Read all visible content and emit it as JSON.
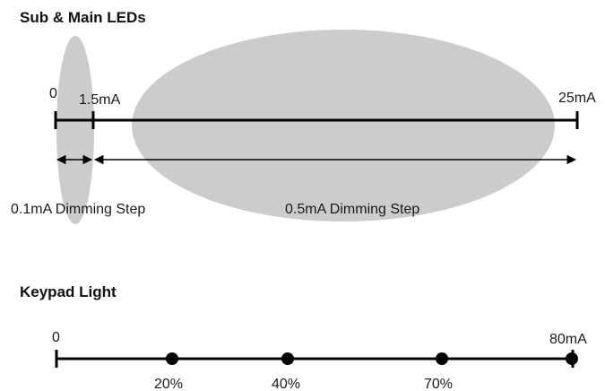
{
  "colors": {
    "ellipse_fill": "#cccccc",
    "line": "#000000",
    "text": "#1a1a1a"
  },
  "sub_main": {
    "title": "Sub & Main LEDs",
    "scale_start": "0",
    "mid_label": "1.5mA",
    "end_label": "25mA",
    "fine_step_label": "0.1mA Dimming Step",
    "coarse_step_label": "0.5mA Dimming Step"
  },
  "keypad": {
    "title": "Keypad Light",
    "scale_start": "0",
    "end_label": "80mA",
    "points": [
      {
        "label": "20%"
      },
      {
        "label": "40%"
      },
      {
        "label": "70%"
      }
    ]
  }
}
